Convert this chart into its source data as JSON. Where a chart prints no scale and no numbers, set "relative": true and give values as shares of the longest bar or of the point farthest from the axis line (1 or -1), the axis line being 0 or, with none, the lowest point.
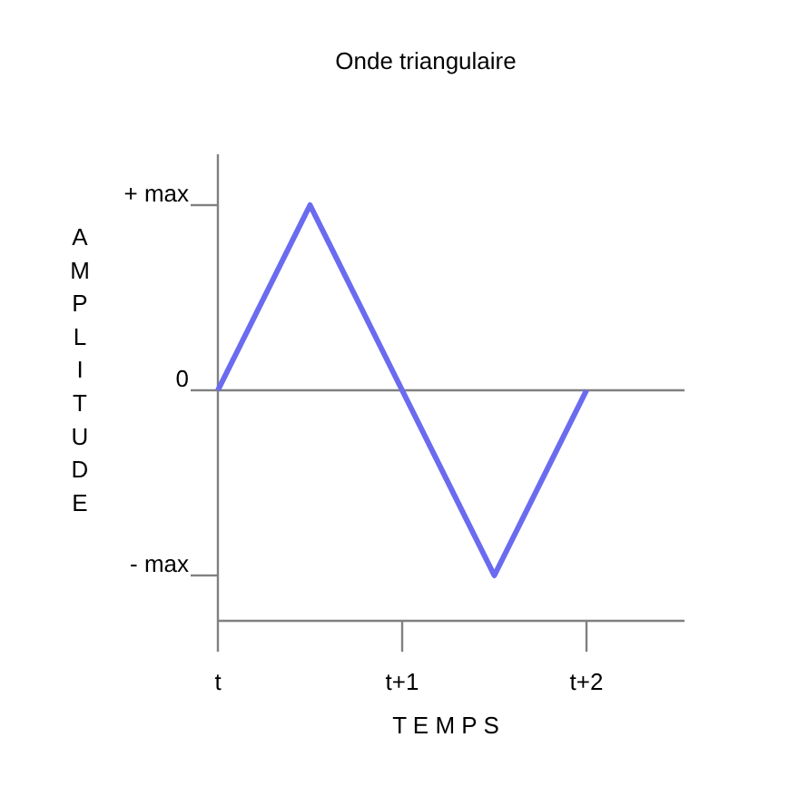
{
  "chart_data": {
    "type": "line",
    "title": "Onde triangulaire",
    "xlabel": "T E M P S",
    "ylabel": "AMPLITUDE",
    "relative": true,
    "categories": [
      "t",
      null,
      "t+1",
      null,
      "t+2"
    ],
    "series": [
      {
        "color": "#6b6bf0",
        "values": [
          0,
          1,
          0,
          -1,
          0
        ]
      }
    ],
    "annotations": [
      "+ max",
      "0",
      "- max"
    ],
    "ref_lines": [
      {
        "axis": "y",
        "value": 0,
        "color": "#808080"
      }
    ]
  }
}
